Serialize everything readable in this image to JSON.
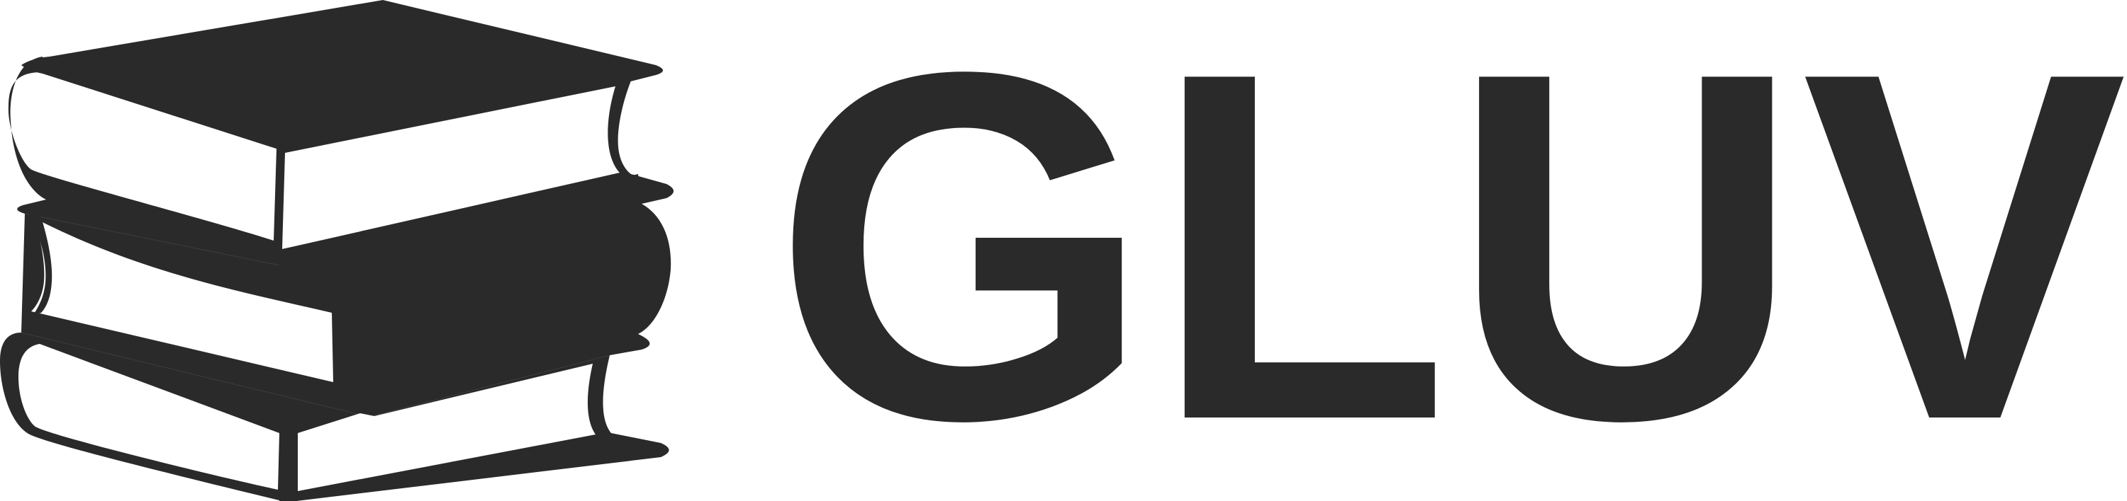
{
  "brand": {
    "name": "GLUV",
    "logo_icon": "stacked-books-icon",
    "color": "#2a2a2a",
    "background": "#ffffff"
  }
}
